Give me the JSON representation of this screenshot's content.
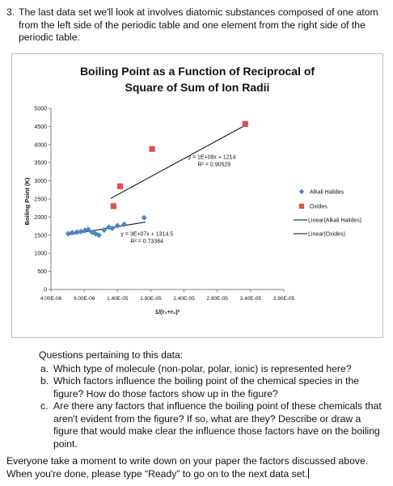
{
  "item3": {
    "number": "3.",
    "text": "The last data set we'll look at involves diatomic substances composed of one atom from the left side of the periodic table and one element from the right side of the periodic table."
  },
  "chart_data": {
    "type": "scatter",
    "title_line1": "Boiling Point as a Function of Reciprocal of",
    "title_line2": "Square of Sum of Ion Radii",
    "xlabel": "1/(r₁+r₂)²",
    "ylabel": "Boiling Point (K)",
    "ylim": [
      0,
      5000
    ],
    "xlim": [
      4e-06,
      3.9e-05
    ],
    "x_ticks": [
      "4.00E-06",
      "9.00E-06",
      "1.40E-05",
      "1.90E-05",
      "2.40E-05",
      "2.90E-05",
      "3.40E-05",
      "3.90E-05"
    ],
    "y_ticks": [
      "0",
      "500",
      "1000",
      "1500",
      "2000",
      "2500",
      "3000",
      "3500",
      "4000",
      "4500",
      "5000"
    ],
    "grid": false,
    "legend_position": "right",
    "series": [
      {
        "name": "Alkali Halides",
        "color": "#4a86c8",
        "marker": "diamond",
        "points": [
          [
            6.6e-06,
            1540
          ],
          [
            7.2e-06,
            1570
          ],
          [
            7.9e-06,
            1585
          ],
          [
            8.5e-06,
            1600
          ],
          [
            9.1e-06,
            1630
          ],
          [
            9.6e-06,
            1660
          ],
          [
            1.02e-05,
            1580
          ],
          [
            1.07e-05,
            1540
          ],
          [
            1.12e-05,
            1500
          ],
          [
            1.2e-05,
            1640
          ],
          [
            1.27e-05,
            1720
          ],
          [
            1.32e-05,
            1690
          ],
          [
            1.4e-05,
            1760
          ],
          [
            1.5e-05,
            1800
          ],
          [
            1.8e-05,
            1980
          ]
        ]
      },
      {
        "name": "Oxides",
        "color": "#d9534f",
        "marker": "square",
        "points": [
          [
            1.34e-05,
            2300
          ],
          [
            1.44e-05,
            2850
          ],
          [
            1.92e-05,
            3880
          ],
          [
            3.32e-05,
            4570
          ]
        ]
      }
    ],
    "trendlines": [
      {
        "name": "Linear(Alkali Halides)",
        "equation": "y = 3E+07x + 1314.5",
        "r2": "R² = 0.73384",
        "slope": 30000000.0,
        "intercept": 1314.5,
        "x_start": 6.6e-06,
        "x_end": 1.82e-05,
        "label_anchor": [
          1.45e-05,
          1480
        ]
      },
      {
        "name": "Linear(Oxides)",
        "equation": "y = 1E+08x + 1214",
        "r2": "R² = 0.90529",
        "slope": 100000000.0,
        "intercept": 1214,
        "x_start": 1.3e-05,
        "x_end": 3.32e-05,
        "label_anchor": [
          2.46e-05,
          3610
        ]
      }
    ]
  },
  "questions": {
    "heading": "Questions pertaining to this data:",
    "items": [
      {
        "letter": "a.",
        "text": "Which type of molecule (non-polar, polar, ionic) is represented here?"
      },
      {
        "letter": "b.",
        "text": "Which factors influence the boiling point of the chemical species in the figure?  How do those factors show up in the figure?"
      },
      {
        "letter": "c.",
        "text": "Are there any factors that influence the boiling point of these chemicals that aren't evident from the figure?  If so, what are they?  Describe or draw a figure that would make clear the influence those factors have on the boiling point."
      }
    ]
  },
  "closing": {
    "text": "Everyone take a moment to write down on your paper the factors discussed above. When you're done, please type “Ready” to go on to the next data set."
  }
}
